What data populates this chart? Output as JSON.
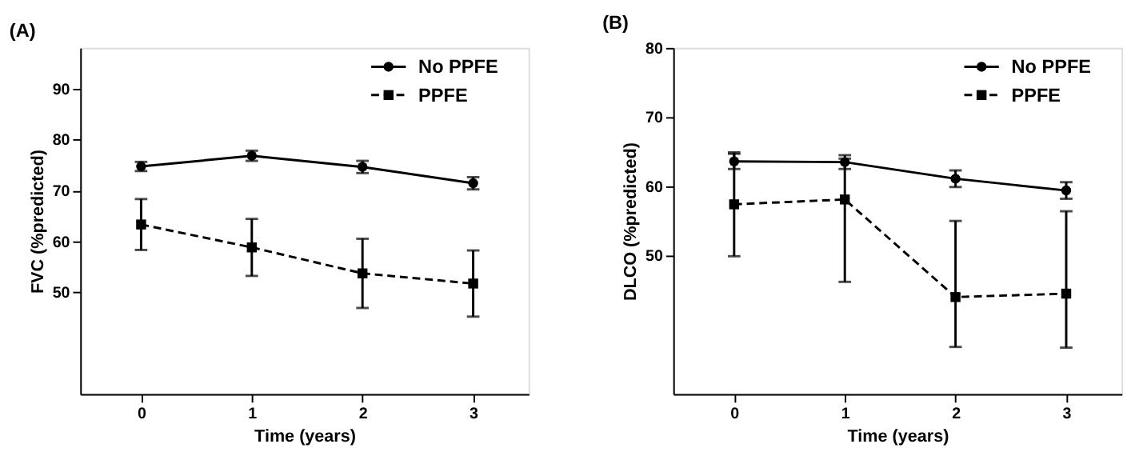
{
  "chart_data": [
    {
      "type": "line",
      "title": "(A)",
      "xlabel": "Time (years)",
      "ylabel": "FVC (%predicted)",
      "x": [
        0,
        1,
        2,
        3
      ],
      "xlim": [
        -0.55,
        3.5
      ],
      "xticks": [
        0,
        1,
        2,
        3
      ],
      "ylim": [
        30,
        98
      ],
      "yticks": [
        50,
        60,
        70,
        80,
        90
      ],
      "grid": false,
      "legend": "top right",
      "series": [
        {
          "name": "No PPFE",
          "color": "#000000",
          "marker": "circle",
          "line_style": "solid",
          "values": [
            74.7,
            76.8,
            74.6,
            71.4
          ],
          "errors": [
            0.9,
            1.0,
            1.2,
            1.2
          ]
        },
        {
          "name": "PPFE",
          "color": "#000000",
          "marker": "square",
          "line_style": "dashed",
          "values": [
            63.3,
            58.8,
            53.7,
            51.7
          ],
          "errors": [
            5.0,
            5.6,
            6.8,
            6.5
          ]
        }
      ]
    },
    {
      "type": "line",
      "title": "(B)",
      "xlabel": "Time (years)",
      "ylabel": "DLCO (%predicted)",
      "x": [
        0,
        1,
        2,
        3
      ],
      "xlim": [
        -0.55,
        3.5
      ],
      "xticks": [
        0,
        1,
        2,
        3
      ],
      "ylim": [
        30,
        80
      ],
      "yticks": [
        50,
        60,
        70,
        80
      ],
      "grid": false,
      "legend": "top right",
      "series": [
        {
          "name": "No PPFE",
          "color": "#000000",
          "marker": "circle",
          "line_style": "solid",
          "values": [
            63.6,
            63.5,
            61.1,
            59.4
          ],
          "errors": [
            1.1,
            1.0,
            1.2,
            1.2
          ]
        },
        {
          "name": "PPFE",
          "color": "#000000",
          "marker": "square",
          "line_style": "dashed",
          "values": [
            57.4,
            58.1,
            44.0,
            44.5
          ],
          "errors": [
            7.5,
            [
              46.2,
              64.0
            ],
            [
              36.8,
              55.0
            ],
            [
              36.7,
              56.4
            ]
          ]
        }
      ]
    }
  ]
}
